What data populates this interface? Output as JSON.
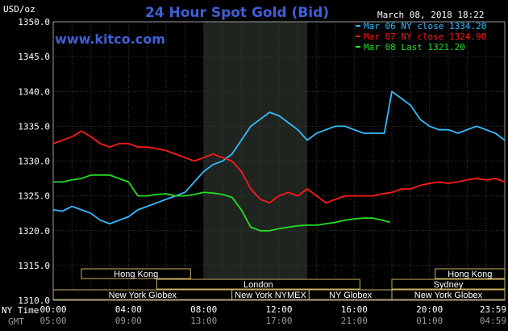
{
  "chart_data": {
    "type": "line",
    "title": "24 Hour Spot Gold (Bid)",
    "website": "www.kitco.com",
    "unit_label": "USD/oz",
    "datetime": "March 08, 2018 18:22",
    "ylim": [
      1310,
      1350
    ],
    "y_ticks": [
      "1350.0",
      "1345.0",
      "1340.0",
      "1335.0",
      "1330.0",
      "1325.0",
      "1320.0",
      "1315.0",
      "1310.0"
    ],
    "x_tick_labels": [
      "00:00",
      "04:00",
      "08:00",
      "12:00",
      "16:00",
      "20:00",
      "23:59"
    ],
    "x_tick_gmt": [
      "05:00",
      "09:00",
      "13:00",
      "17:00",
      "21:00",
      "01:00",
      "04:59"
    ],
    "x_axis_label_top": "NY Time",
    "x_axis_label_bottom": "GMT",
    "x_range_hours": [
      0,
      24
    ],
    "highlight_range_hours": [
      8,
      13.5
    ],
    "legend": [
      {
        "label": "Mar 06 NY close 1334.20",
        "color": "#33bbff"
      },
      {
        "label": "Mar 07 NY close 1324.90",
        "color": "#ff1a1a"
      },
      {
        "label": "Mar 08 Last 1321.20",
        "color": "#22dd22"
      }
    ],
    "sessions": [
      {
        "label": "Hong Kong",
        "row": 0,
        "start_h": 1.5,
        "end_h": 7.3
      },
      {
        "label": "Hong Kong",
        "row": 0,
        "start_h": 20.3,
        "end_h": 24
      },
      {
        "label": "London",
        "row": 1,
        "start_h": 5.5,
        "end_h": 16.3
      },
      {
        "label": "Sydney",
        "row": 1,
        "start_h": 18,
        "end_h": 24
      },
      {
        "label": "New York Globex",
        "row": 2,
        "start_h": 0,
        "end_h": 9.5
      },
      {
        "label": "New York NYMEX",
        "row": 2,
        "start_h": 9.5,
        "end_h": 13.6
      },
      {
        "label": "NY Globex",
        "row": 2,
        "start_h": 13.6,
        "end_h": 18
      },
      {
        "label": "New York Globex",
        "row": 2,
        "start_h": 18,
        "end_h": 24
      }
    ],
    "series": [
      {
        "name": "Mar 06 NY close 1334.20",
        "color": "#33bbff",
        "x": [
          0,
          0.5,
          1,
          1.5,
          2,
          2.5,
          3,
          3.5,
          4,
          4.5,
          5,
          5.5,
          6,
          6.5,
          7,
          7.5,
          8,
          8.5,
          9,
          9.5,
          10,
          10.5,
          11,
          11.5,
          12,
          12.5,
          13,
          13.5,
          14,
          14.5,
          15,
          15.5,
          16,
          16.5,
          17,
          17.5,
          17.6,
          18,
          18.5,
          19,
          19.5,
          20,
          20.5,
          21,
          21.5,
          22,
          22.5,
          23,
          23.5,
          23.99
        ],
        "values": [
          1323,
          1322.8,
          1323.5,
          1323,
          1322.5,
          1321.5,
          1321,
          1321.5,
          1322,
          1323,
          1323.5,
          1324,
          1324.5,
          1325,
          1325.5,
          1327,
          1328.5,
          1329.5,
          1330,
          1331,
          1333,
          1335,
          1336,
          1337,
          1336.5,
          1335.5,
          1334.5,
          1333,
          1334,
          1334.5,
          1335,
          1335,
          1334.5,
          1334,
          1334,
          1334,
          1334,
          1340,
          1339,
          1338,
          1336,
          1335,
          1334.5,
          1334.5,
          1334,
          1334.5,
          1335,
          1334.5,
          1334,
          1333
        ]
      },
      {
        "name": "Mar 07 NY close 1324.90",
        "color": "#ff1a1a",
        "x": [
          0,
          0.5,
          1,
          1.5,
          2,
          2.5,
          3,
          3.5,
          4,
          4.5,
          5,
          5.5,
          6,
          6.5,
          7,
          7.5,
          8,
          8.5,
          9,
          9.5,
          10,
          10.5,
          11,
          11.5,
          12,
          12.5,
          13,
          13.5,
          14,
          14.5,
          15,
          15.5,
          16,
          16.5,
          17,
          17.5,
          18,
          18.5,
          19,
          19.5,
          20,
          20.5,
          21,
          21.5,
          22,
          22.5,
          23,
          23.5,
          23.99
        ],
        "values": [
          1332.5,
          1333,
          1333.5,
          1334.3,
          1333.5,
          1332.5,
          1332,
          1332.5,
          1332.5,
          1332,
          1332,
          1331.8,
          1331.5,
          1331,
          1330.5,
          1330,
          1330.5,
          1331,
          1330.5,
          1330,
          1328.5,
          1326,
          1324.5,
          1324,
          1325,
          1325.5,
          1325,
          1326,
          1325,
          1324,
          1324.5,
          1325,
          1325,
          1325,
          1325,
          1325.3,
          1325.5,
          1326,
          1326,
          1326.5,
          1326.8,
          1327,
          1326.8,
          1327,
          1327.3,
          1327.5,
          1327.3,
          1327.5,
          1327
        ]
      },
      {
        "name": "Mar 08 Last 1321.20",
        "color": "#22dd22",
        "x": [
          0,
          0.5,
          1,
          1.5,
          2,
          2.5,
          3,
          3.5,
          4,
          4.5,
          5,
          5.5,
          6,
          6.5,
          7,
          7.5,
          8,
          8.5,
          9,
          9.5,
          10,
          10.5,
          11,
          11.5,
          12,
          12.5,
          13,
          13.5,
          14,
          14.5,
          15,
          15.5,
          16,
          16.5,
          17,
          17.5,
          17.9
        ],
        "values": [
          1327,
          1327,
          1327.3,
          1327.5,
          1328,
          1328,
          1328,
          1327.5,
          1327,
          1325,
          1325,
          1325.2,
          1325.3,
          1325,
          1325,
          1325.2,
          1325.5,
          1325.4,
          1325.2,
          1324.8,
          1323,
          1320.5,
          1320,
          1320,
          1320.3,
          1320.5,
          1320.7,
          1320.8,
          1320.8,
          1321,
          1321.2,
          1321.5,
          1321.7,
          1321.8,
          1321.8,
          1321.5,
          1321.2
        ]
      }
    ]
  }
}
